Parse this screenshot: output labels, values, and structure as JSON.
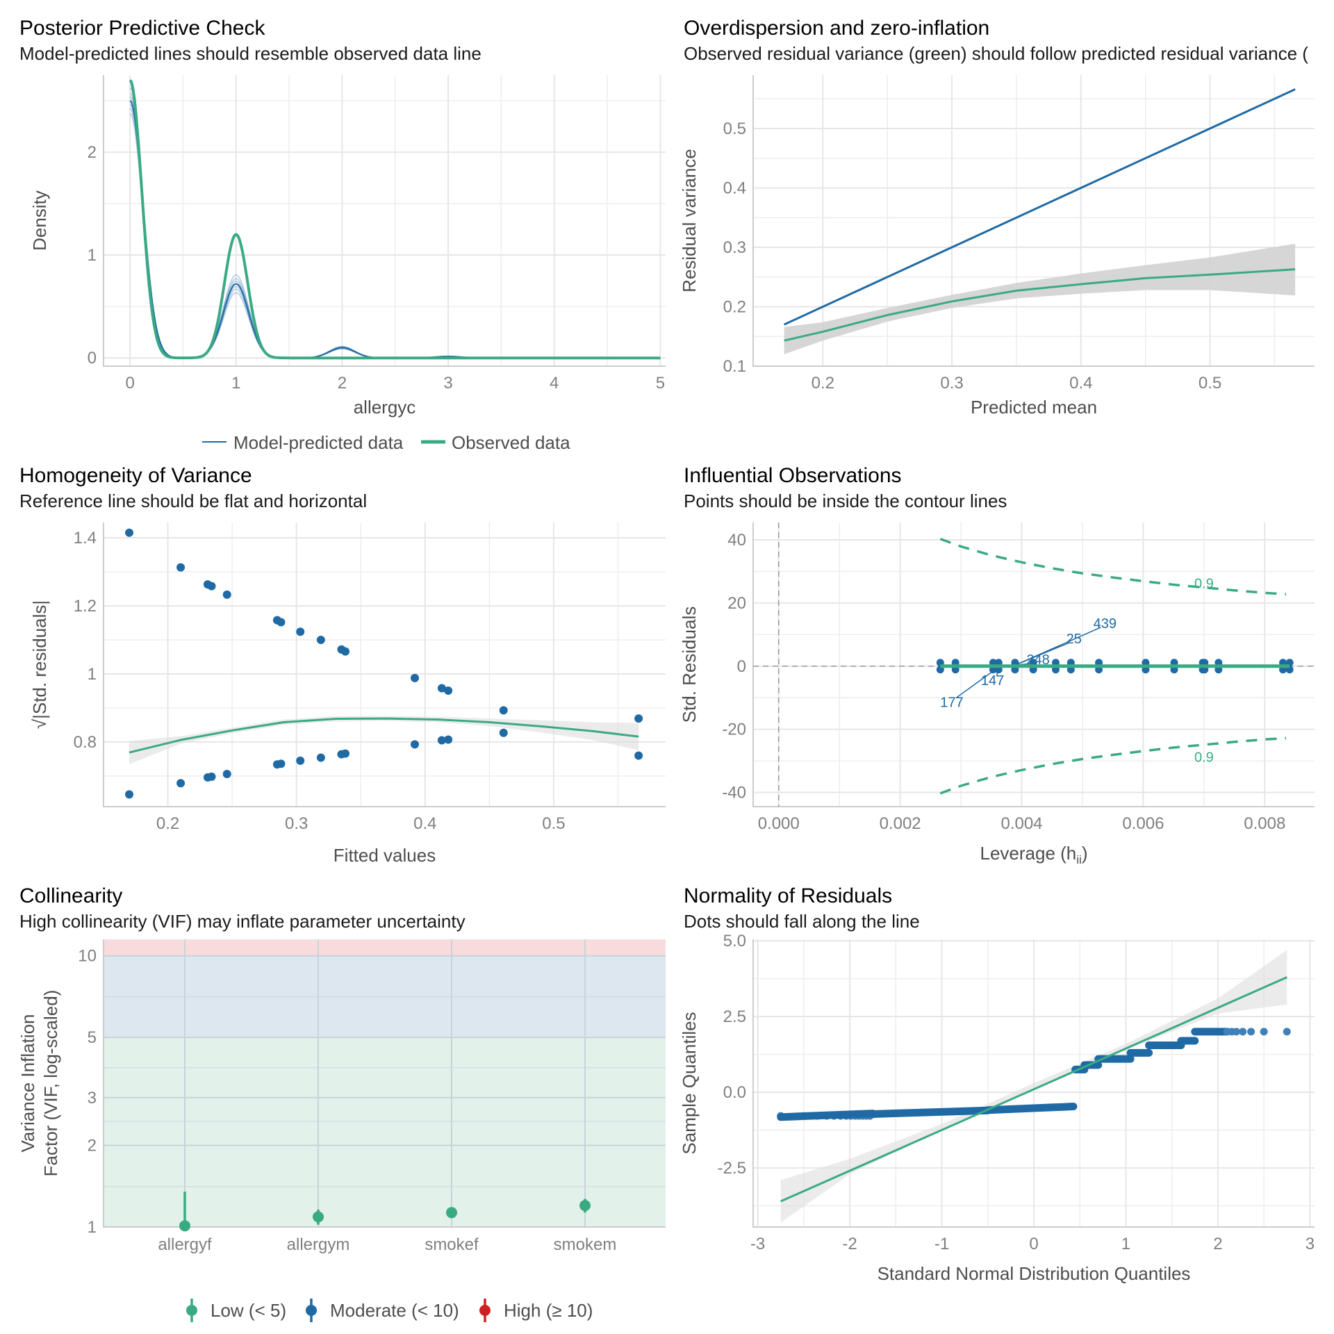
{
  "colors": {
    "blue": "#1f6aa5",
    "green": "#3aaa83",
    "red": "#cd201f",
    "ci_gray": "#cfcfcf",
    "band_low": "#e2f1ea",
    "band_moderate": "#dce7f0",
    "band_high": "#f8dcdd"
  },
  "chart_data": [
    {
      "id": "ppc",
      "type": "line",
      "title": "Posterior Predictive Check",
      "subtitle": "Model-predicted lines should resemble observed data line",
      "xlabel": "allergyc",
      "ylabel": "Density",
      "xlim": [
        -0.25,
        5.05
      ],
      "ylim": [
        -0.08,
        2.75
      ],
      "xticks": [
        0,
        1,
        2,
        3,
        4,
        5
      ],
      "yticks": [
        0,
        1,
        2
      ],
      "grid": true,
      "legend": {
        "position": "bottom",
        "entries": [
          "Model-predicted data",
          "Observed data"
        ]
      },
      "series": [
        {
          "name": "Model-predicted data",
          "peaks": [
            {
              "x": 0,
              "y": 2.5
            },
            {
              "x": 1,
              "y": 0.72
            },
            {
              "x": 2,
              "y": 0.1
            },
            {
              "x": 3,
              "y": 0.015
            }
          ],
          "bandwidth": 0.12
        },
        {
          "name": "Observed data",
          "peaks": [
            {
              "x": 0,
              "y": 2.7
            },
            {
              "x": 1,
              "y": 1.2
            }
          ],
          "bandwidth": 0.11
        }
      ]
    },
    {
      "id": "overdispersion",
      "type": "line",
      "title": "Overdispersion and zero-inflation",
      "subtitle": "Observed residual variance (green) should follow predicted residual variance (",
      "xlabel": "Predicted mean",
      "ylabel": "Residual variance",
      "xlim": [
        0.146,
        0.581
      ],
      "ylim": [
        0.1,
        0.59
      ],
      "xticks": [
        0.2,
        0.3,
        0.4,
        0.5
      ],
      "yticks": [
        0.1,
        0.2,
        0.3,
        0.4,
        0.5
      ],
      "grid": true,
      "series": [
        {
          "name": "Predicted residual variance",
          "x": [
            0.17,
            0.566
          ],
          "y": [
            0.17,
            0.566
          ]
        },
        {
          "name": "Observed residual variance",
          "x": [
            0.17,
            0.2,
            0.25,
            0.3,
            0.35,
            0.4,
            0.45,
            0.5,
            0.566
          ],
          "y": [
            0.143,
            0.158,
            0.186,
            0.209,
            0.227,
            0.238,
            0.248,
            0.254,
            0.263
          ],
          "ci_low": [
            0.12,
            0.143,
            0.175,
            0.198,
            0.214,
            0.222,
            0.228,
            0.228,
            0.219
          ],
          "ci_high": [
            0.166,
            0.174,
            0.198,
            0.22,
            0.24,
            0.256,
            0.27,
            0.283,
            0.306
          ]
        }
      ]
    },
    {
      "id": "homogeneity",
      "type": "scatter",
      "title": "Homogeneity of Variance",
      "subtitle": "Reference line should be flat and horizontal",
      "xlabel": "Fitted values",
      "ylabel": "√|Std. residuals|",
      "xlim": [
        0.15,
        0.587
      ],
      "ylim": [
        0.61,
        1.445
      ],
      "xticks": [
        0.2,
        0.3,
        0.4,
        0.5
      ],
      "yticks": [
        0.8,
        1.0,
        1.2,
        1.4
      ],
      "grid": true,
      "points": [
        [
          0.17,
          1.415
        ],
        [
          0.21,
          1.313
        ],
        [
          0.231,
          1.263
        ],
        [
          0.234,
          1.258
        ],
        [
          0.246,
          1.233
        ],
        [
          0.285,
          1.158
        ],
        [
          0.288,
          1.152
        ],
        [
          0.303,
          1.124
        ],
        [
          0.319,
          1.1
        ],
        [
          0.335,
          1.072
        ],
        [
          0.338,
          1.066
        ],
        [
          0.392,
          0.988
        ],
        [
          0.413,
          0.958
        ],
        [
          0.418,
          0.951
        ],
        [
          0.461,
          0.893
        ],
        [
          0.566,
          0.869
        ],
        [
          0.17,
          0.646
        ],
        [
          0.21,
          0.679
        ],
        [
          0.231,
          0.696
        ],
        [
          0.234,
          0.698
        ],
        [
          0.246,
          0.706
        ],
        [
          0.285,
          0.734
        ],
        [
          0.288,
          0.736
        ],
        [
          0.303,
          0.745
        ],
        [
          0.319,
          0.754
        ],
        [
          0.335,
          0.764
        ],
        [
          0.338,
          0.766
        ],
        [
          0.392,
          0.793
        ],
        [
          0.413,
          0.805
        ],
        [
          0.418,
          0.807
        ],
        [
          0.461,
          0.827
        ],
        [
          0.566,
          0.76
        ]
      ],
      "smooth": {
        "x": [
          0.17,
          0.21,
          0.25,
          0.29,
          0.33,
          0.37,
          0.41,
          0.45,
          0.49,
          0.53,
          0.566
        ],
        "y": [
          0.769,
          0.806,
          0.834,
          0.858,
          0.868,
          0.869,
          0.866,
          0.858,
          0.846,
          0.832,
          0.816
        ],
        "ci_low": [
          0.735,
          0.795,
          0.826,
          0.85,
          0.86,
          0.862,
          0.858,
          0.847,
          0.828,
          0.806,
          0.776
        ],
        "ci_high": [
          0.803,
          0.817,
          0.842,
          0.866,
          0.876,
          0.876,
          0.874,
          0.869,
          0.864,
          0.858,
          0.856
        ]
      }
    },
    {
      "id": "influential",
      "type": "scatter",
      "title": "Influential Observations",
      "subtitle": "Points should be inside the contour lines",
      "xlabel": "Leverage (h",
      "xlabel_sub": "ii",
      "xlabel_end": ")",
      "ylabel": "Std. Residuals",
      "xlim": [
        -0.00042,
        0.00882
      ],
      "ylim": [
        -44.5,
        45.5
      ],
      "xticks": [
        0.0,
        0.002,
        0.004,
        0.006,
        0.008
      ],
      "xtick_labels": [
        "0.000",
        "0.002",
        "0.004",
        "0.006",
        "0.008"
      ],
      "yticks": [
        -40,
        -20,
        0,
        20,
        40
      ],
      "grid": true,
      "leverage_points": [
        0.00266,
        0.00291,
        0.00353,
        0.00362,
        0.00389,
        0.00419,
        0.00456,
        0.00481,
        0.00527,
        0.00604,
        0.00651,
        0.00698,
        0.00701,
        0.00724,
        0.0083,
        0.00841
      ],
      "contour": {
        "level_label": "0.9",
        "x": [
          0.00266,
          0.003,
          0.0035,
          0.004,
          0.0045,
          0.005,
          0.0055,
          0.006,
          0.0065,
          0.007,
          0.0075,
          0.008,
          0.00835
        ],
        "y": [
          40.3,
          37.9,
          35.1,
          32.9,
          31.0,
          29.4,
          28.1,
          26.9,
          25.8,
          24.9,
          24.0,
          23.2,
          22.8
        ]
      },
      "labels": [
        {
          "text": "439",
          "x": 0.00537,
          "y": 13.6,
          "px": 0.00389,
          "py": 0.3
        },
        {
          "text": "25",
          "x": 0.00486,
          "y": 8.8,
          "px": 0.00389,
          "py": 0.3
        },
        {
          "text": "248",
          "x": 0.00427,
          "y": 2.2,
          "px": 0.00389,
          "py": 0.3
        },
        {
          "text": "147",
          "x": 0.00352,
          "y": -4.5,
          "px": 0.00362,
          "py": -0.3
        },
        {
          "text": "177",
          "x": 0.00285,
          "y": -11.4,
          "px": 0.00362,
          "py": -0.3
        }
      ]
    },
    {
      "id": "collinearity",
      "type": "scatter",
      "title": "Collinearity",
      "subtitle": "High collinearity (VIF) may inflate parameter uncertainty",
      "xlabel": "",
      "ylabel_line1": "Variance Inflation",
      "ylabel_line2": "Factor (VIF, log-scaled)",
      "categories": [
        "allergyf",
        "allergym",
        "smokef",
        "smokem"
      ],
      "vif": [
        1.01,
        1.09,
        1.13,
        1.2
      ],
      "ci_high": [
        1.35,
        1.16,
        1.18,
        1.27
      ],
      "yscale": "log",
      "ylim": [
        1,
        11.5
      ],
      "yticks": [
        1,
        2,
        3,
        5,
        10
      ],
      "bands": [
        {
          "name": "Low",
          "from": 1,
          "to": 5
        },
        {
          "name": "Moderate",
          "from": 5,
          "to": 10
        },
        {
          "name": "High",
          "from": 10,
          "to": 11.5
        }
      ],
      "legend": {
        "position": "bottom",
        "entries": [
          "Low (< 5)",
          "Moderate (< 10)",
          "High (≥ 10)"
        ]
      }
    },
    {
      "id": "normality",
      "type": "scatter",
      "title": "Normality of Residuals",
      "subtitle": "Dots should fall along the line",
      "xlabel": "Standard Normal Distribution Quantiles",
      "ylabel": "Sample Quantiles",
      "xlim": [
        -3.05,
        3.05
      ],
      "ylim": [
        -4.45,
        5.05
      ],
      "xticks": [
        -3,
        -2,
        -1,
        0,
        1,
        2,
        3
      ],
      "yticks": [
        -2.5,
        0.0,
        2.5,
        5.0
      ],
      "ytick_labels": [
        "-2.5",
        "0.0",
        "2.5",
        "5.0"
      ],
      "grid": true,
      "line": {
        "x": [
          -2.75,
          2.75
        ],
        "y": [
          -3.6,
          3.8
        ]
      },
      "band_edges": {
        "x": [
          -2.75,
          -2,
          -1,
          0,
          1,
          2,
          2.75
        ],
        "low": [
          -4.3,
          -2.7,
          -1.25,
          0.1,
          1.4,
          2.6,
          2.9
        ],
        "high": [
          -2.9,
          -2.2,
          -1.05,
          0.3,
          1.6,
          3.1,
          4.7
        ]
      },
      "segments": [
        {
          "x0": -2.75,
          "x1": -1.75,
          "y": -0.78
        },
        {
          "x0": -1.75,
          "x1": -0.5,
          "y": -0.68
        },
        {
          "x0": -0.5,
          "x1": 0.43,
          "y": -0.55
        },
        {
          "x0": 0.45,
          "x1": 0.55,
          "y": 0.75
        },
        {
          "x0": 0.55,
          "x1": 0.7,
          "y": 0.9
        },
        {
          "x0": 0.7,
          "x1": 1.05,
          "y": 1.1
        },
        {
          "x0": 1.05,
          "x1": 1.25,
          "y": 1.3
        },
        {
          "x0": 1.25,
          "x1": 1.6,
          "y": 1.55
        },
        {
          "x0": 1.6,
          "x1": 1.75,
          "y": 1.7
        },
        {
          "x0": 1.75,
          "x1": 2.1,
          "y": 2.0
        }
      ],
      "tail_points_left": [
        -2.75,
        -2.5,
        -2.35,
        -2.25,
        -2.17,
        -2.1,
        -2.04,
        -1.99,
        -1.94,
        -1.9,
        -1.86,
        -1.82,
        -1.78
      ],
      "tail_points_right": [
        2.1,
        2.15,
        2.2,
        2.27,
        2.36,
        2.5,
        2.75
      ]
    }
  ]
}
